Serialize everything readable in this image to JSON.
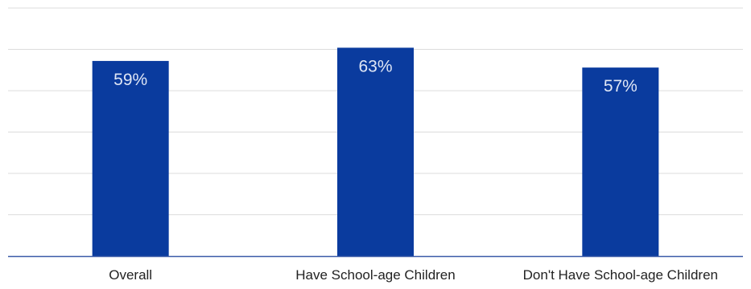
{
  "chart_data": {
    "type": "bar",
    "categories": [
      "Overall",
      "Have School-age Children",
      "Don't Have School-age Children"
    ],
    "values": [
      59,
      63,
      57
    ],
    "value_labels": [
      "59%",
      "63%",
      "57%"
    ],
    "title": "",
    "xlabel": "",
    "ylabel": "",
    "ylim": [
      0,
      75
    ],
    "grid": true,
    "gridlines": [
      0,
      12.5,
      25,
      37.5,
      50,
      62.5,
      75
    ],
    "bar_color": "#0a3b9e",
    "label_color": "#dfe6f5",
    "axis_color": "#3a5ba8",
    "grid_color": "#dcdcdc"
  }
}
